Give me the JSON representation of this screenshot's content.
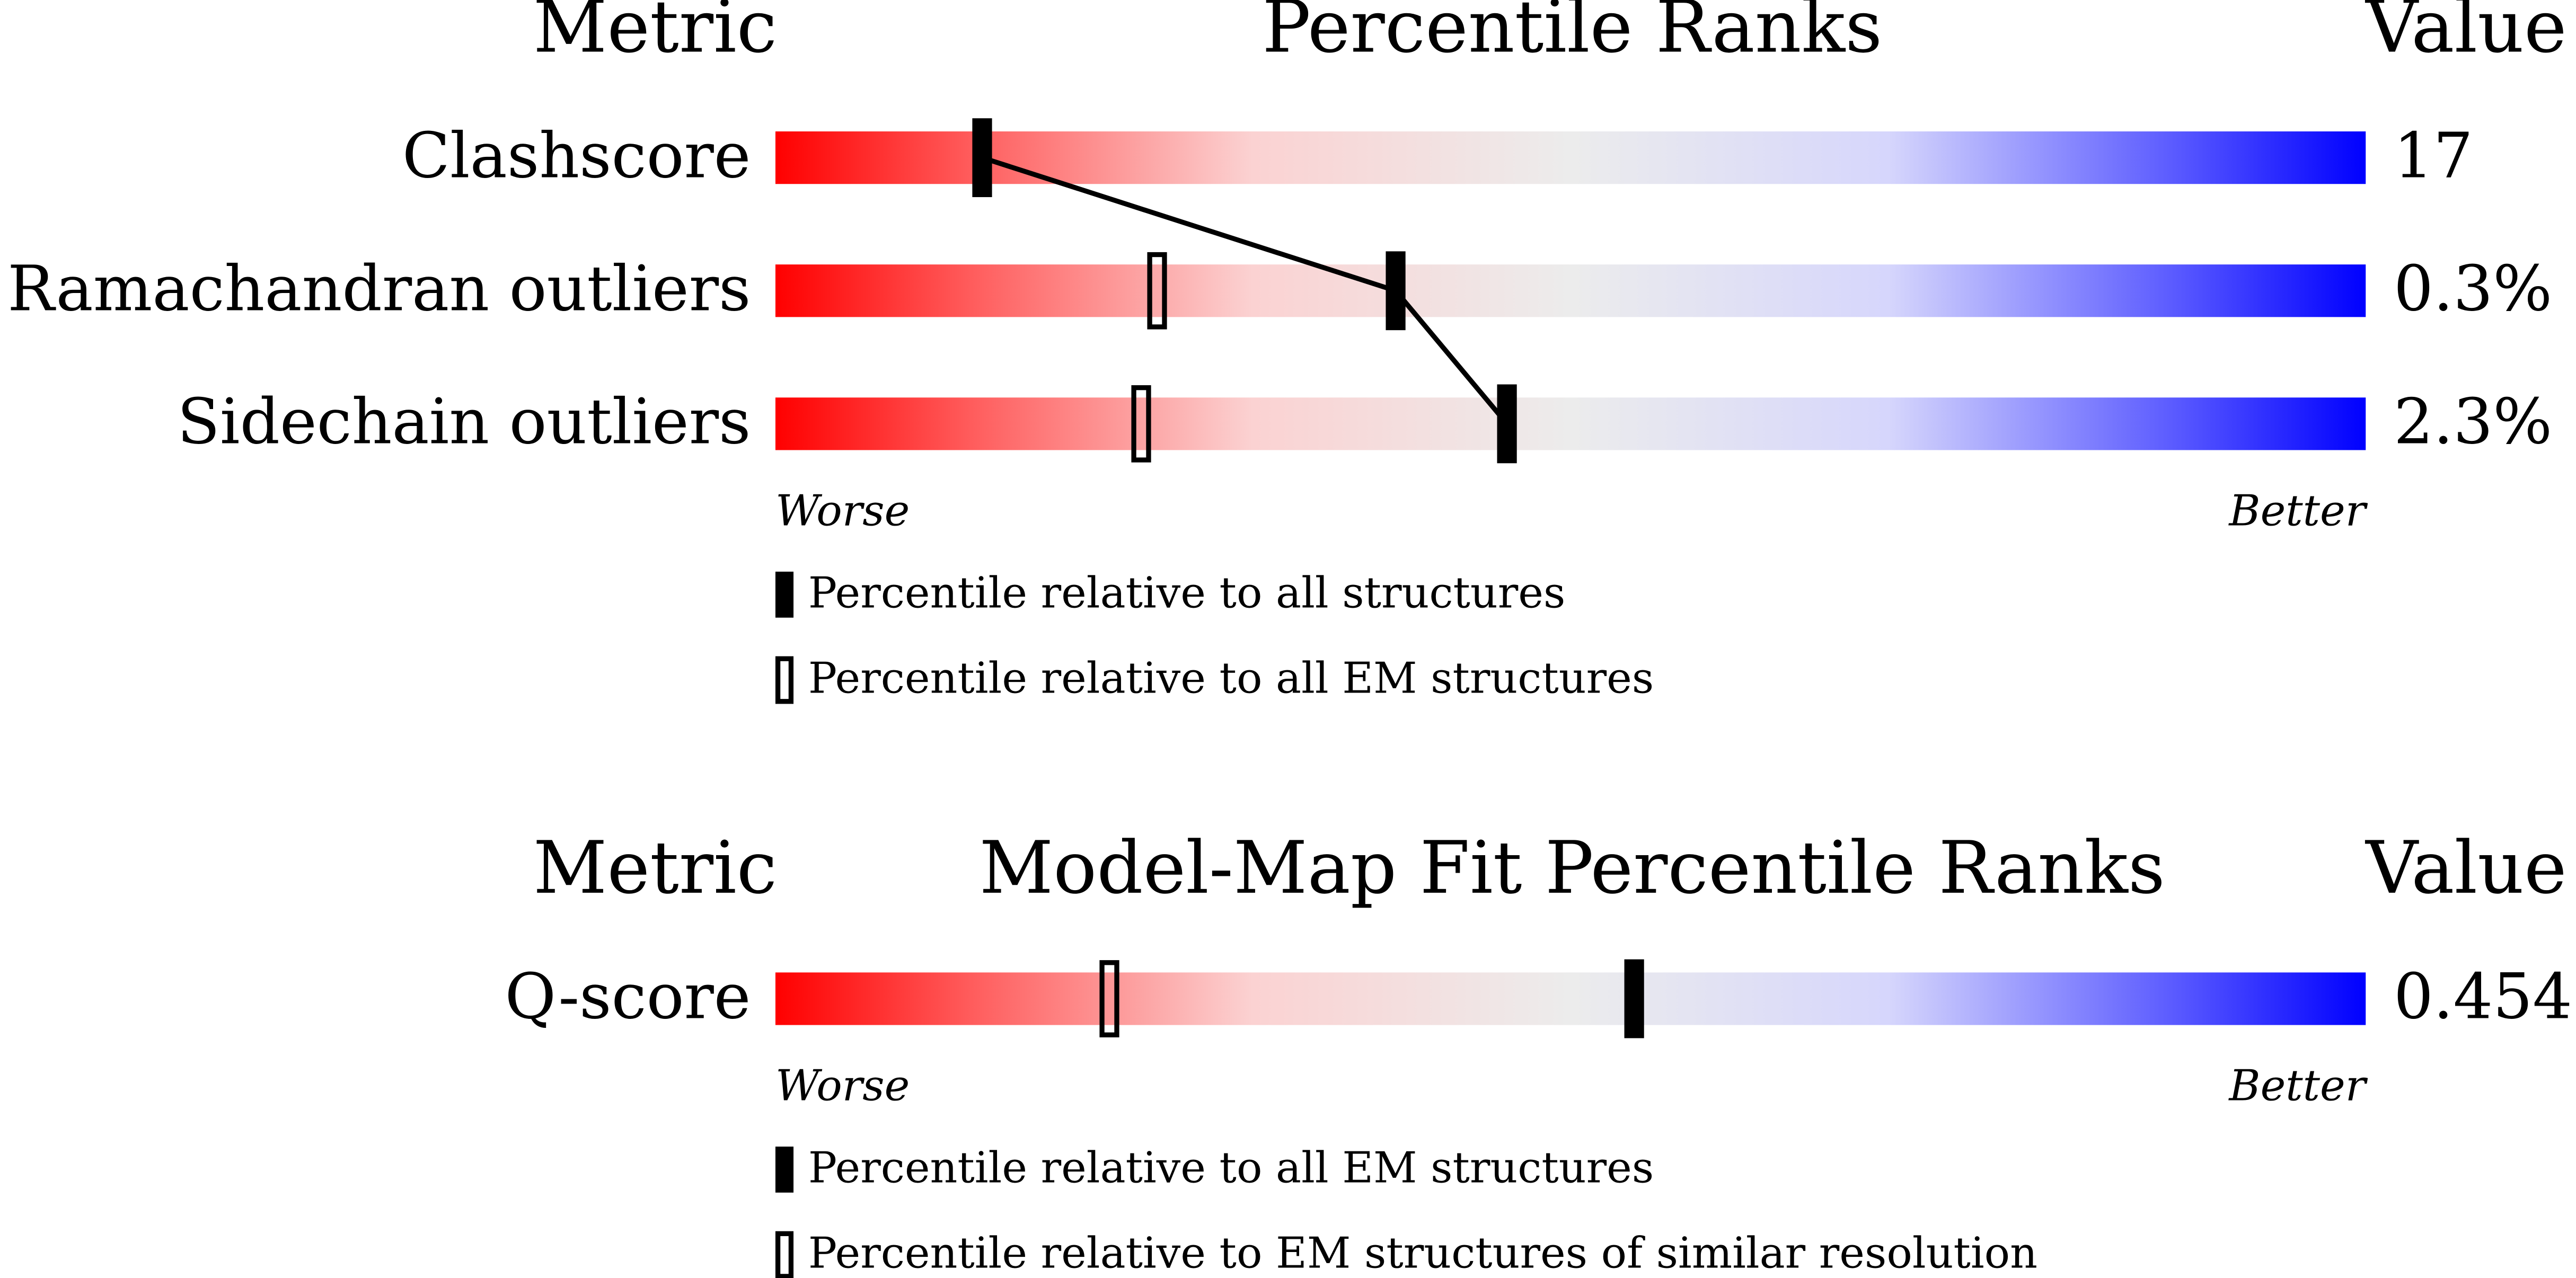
{
  "chart_data": [
    {
      "type": "slider",
      "metric_header": "Metric",
      "title": "Percentile Ranks",
      "value_header": "Value",
      "categories": [
        "Clashscore",
        "Ramachandran outliers",
        "Sidechain outliers"
      ],
      "values": [
        17,
        0.3,
        2.3
      ],
      "value_labels": [
        "17",
        "0.3%",
        "2.3%"
      ],
      "xlim": [
        0,
        100
      ],
      "low_label": "Worse",
      "high_label": "Better",
      "connect": true,
      "series": [
        {
          "name": "Percentile relative to all structures",
          "style": "filled",
          "color": "#000000",
          "values": [
            13,
            39,
            46
          ]
        },
        {
          "name": "Percentile relative to all EM structures",
          "style": "open",
          "color": "#000000",
          "values": [
            null,
            24,
            23
          ]
        }
      ]
    },
    {
      "type": "slider",
      "metric_header": "Metric",
      "title": "Model-Map Fit Percentile Ranks",
      "value_header": "Value",
      "categories": [
        "Q-score"
      ],
      "values": [
        0.454
      ],
      "xlim": [
        0,
        100
      ],
      "low_label": "Worse",
      "high_label": "Better",
      "connect": false,
      "series": [
        {
          "name": "Percentile relative to all EM structures",
          "style": "filled",
          "color": "#000000",
          "values": [
            54
          ]
        },
        {
          "name": "Percentile relative to EM structures of similar resolution",
          "style": "open",
          "color": "#000000",
          "values": [
            21
          ]
        }
      ]
    }
  ]
}
